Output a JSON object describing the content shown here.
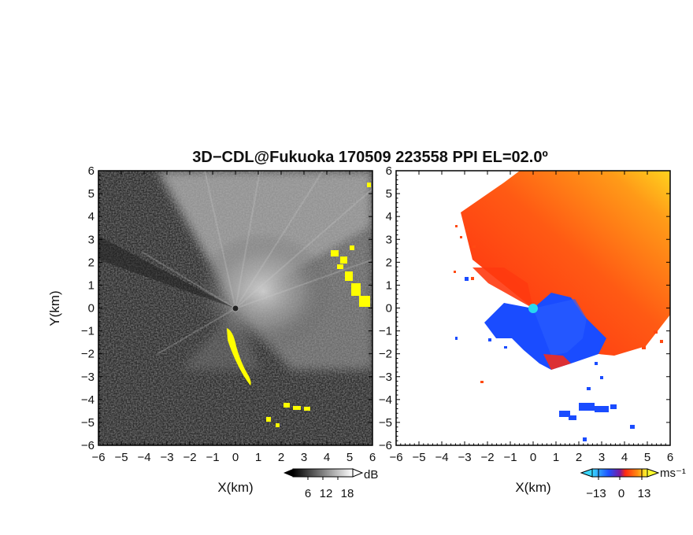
{
  "chart_data": [
    {
      "type": "heatmap",
      "panel": "left",
      "title": "3D−CDL@Fukuoka 170509 223558 PPI EL=02.0º",
      "xlabel": "X(km)",
      "ylabel": "Y(km)",
      "xlim": [
        -6,
        6
      ],
      "ylim": [
        -6,
        6
      ],
      "xticks": [
        "−6",
        "−5",
        "−4",
        "−3",
        "−2",
        "−1",
        "0",
        "1",
        "2",
        "3",
        "4",
        "5",
        "6"
      ],
      "yticks": [
        "6",
        "5",
        "4",
        "3",
        "2",
        "1",
        "0",
        "−1",
        "−2",
        "−3",
        "−4",
        "−5",
        "−6"
      ],
      "colorbar": {
        "unit": "dB",
        "ticks": [
          "6",
          "12",
          "18"
        ],
        "colormap": "grayscale",
        "range": [
          0,
          24
        ]
      },
      "highlight_color": "#ffff00",
      "high_signal_regions": [
        {
          "description": "strong echo line",
          "points": [
            [
              -0.4,
              -0.8
            ],
            [
              -0.1,
              -1.6
            ],
            [
              0.2,
              -2.4
            ],
            [
              0.7,
              -3.3
            ]
          ]
        },
        {
          "description": "strong echo cluster east",
          "points": [
            [
              4.3,
              2.2
            ],
            [
              4.7,
              1.5
            ],
            [
              5.2,
              0.8
            ],
            [
              5.6,
              0.4
            ],
            [
              4.5,
              2.6
            ],
            [
              5.0,
              2.0
            ]
          ]
        },
        {
          "description": "strong echo cluster southeast",
          "points": [
            [
              2.0,
              -4.3
            ],
            [
              2.5,
              -4.4
            ],
            [
              3.0,
              -4.4
            ],
            [
              1.7,
              -4.9
            ],
            [
              3.5,
              -4.5
            ]
          ]
        }
      ]
    },
    {
      "type": "heatmap",
      "panel": "right",
      "xlabel": "X(km)",
      "xlim": [
        -6,
        6
      ],
      "ylim": [
        -6,
        6
      ],
      "xticks": [
        "−6",
        "−5",
        "−4",
        "−3",
        "−2",
        "−1",
        "0",
        "1",
        "2",
        "3",
        "4",
        "5",
        "6"
      ],
      "yticks": [
        "6",
        "5",
        "4",
        "3",
        "2",
        "1",
        "0",
        "−1",
        "−2",
        "−3",
        "−4",
        "−5",
        "−6"
      ],
      "colorbar": {
        "unit": "ms⁻¹",
        "ticks": [
          "−13",
          "0",
          "13"
        ],
        "colormap": "blue-cyan-red-yellow",
        "range": [
          -20,
          20
        ]
      },
      "radar_location": {
        "x": 0,
        "y": 0,
        "color": "#27d8f0"
      },
      "regions": [
        {
          "description": "receding (positive velocity) sector",
          "color": "#ff3a10",
          "approx_velocity": 12
        },
        {
          "description": "approaching (negative velocity) region",
          "color": "#1a4cff",
          "approx_velocity": -12
        }
      ]
    }
  ]
}
